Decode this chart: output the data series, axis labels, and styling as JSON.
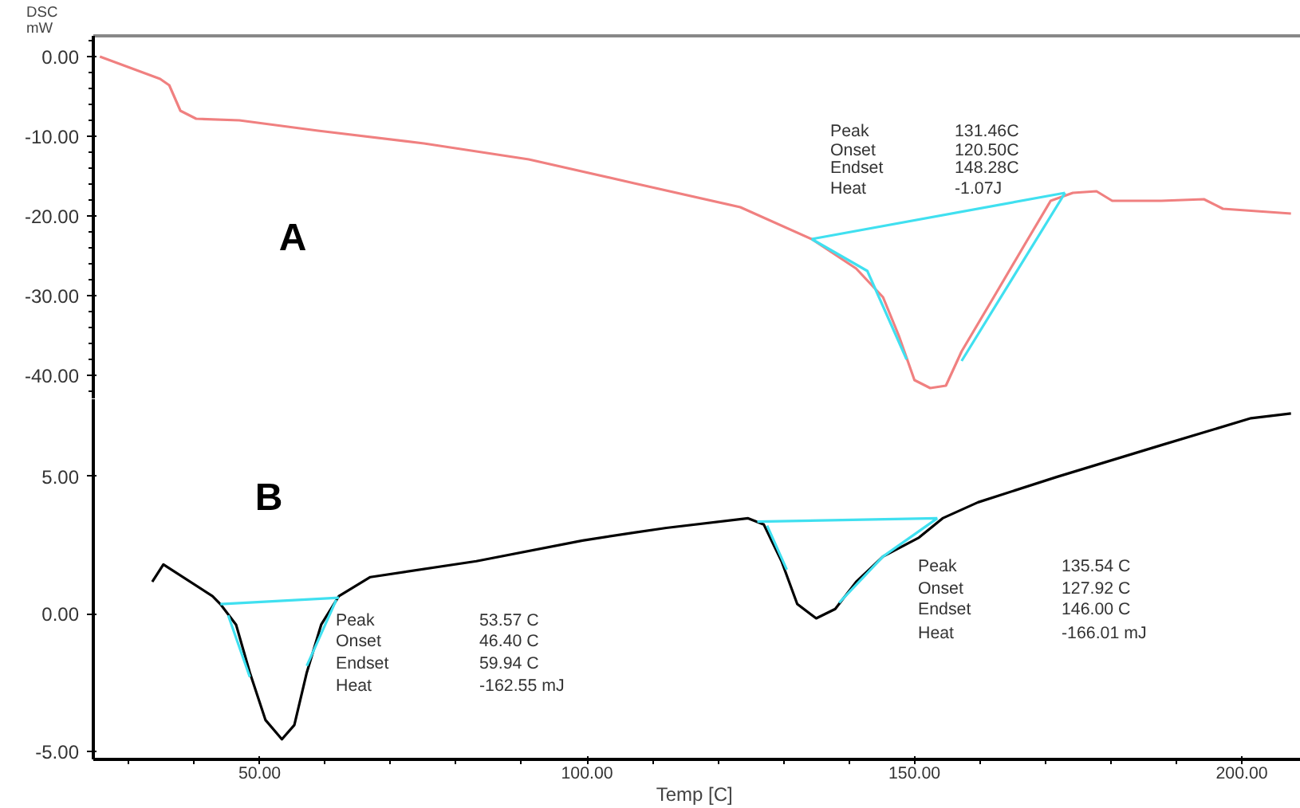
{
  "chart_data": [
    {
      "type": "line",
      "ylabel": "DSC\nmW",
      "xlim": [
        24.6,
        209
      ],
      "ylim": [
        -43,
        2.6
      ],
      "tick_labels": "y",
      "yticks": [
        {
          "value": 0,
          "label": "0.00"
        },
        {
          "value": -10,
          "label": "-10.00"
        },
        {
          "value": -20,
          "label": "-20.00"
        },
        {
          "value": -30,
          "label": "-30.00"
        },
        {
          "value": -40,
          "label": "-40.00"
        }
      ],
      "series": [
        {
          "color": "#f08080",
          "x": [
            25.6,
            34.8,
            36.2,
            37.9,
            40.3,
            46.9,
            58.9,
            75.1,
            91.1,
            107.2,
            123.4,
            134.3,
            141.1,
            145.2,
            147.6,
            150,
            152.4,
            154.8,
            157.2,
            162.1,
            166.9,
            170.8,
            174.2,
            177.8,
            180.2,
            187.7,
            194.2,
            197.1,
            207.5
          ],
          "values": [
            0,
            -2.8,
            -3.6,
            -6.8,
            -7.8,
            -8.0,
            -9.3,
            -10.9,
            -12.9,
            -15.9,
            -18.9,
            -22.9,
            -26.6,
            -30.2,
            -35,
            -40.6,
            -41.6,
            -41.3,
            -37,
            -30.2,
            -23.5,
            -18.1,
            -17.1,
            -16.9,
            -18.1,
            -18.1,
            -17.9,
            -19.1,
            -19.7
          ]
        },
        {
          "color": "#40e0f0",
          "x": [
            134.3,
            173,
            null,
            134.3,
            142.8,
            148.8,
            null,
            157.2,
            173
          ],
          "values": [
            -22.9,
            -17.1,
            null,
            -22.9,
            -26.9,
            -38,
            null,
            -38.2,
            -17.1
          ]
        }
      ],
      "annotations": [
        "A",
        "Peak",
        "Onset",
        "Endset",
        "Heat",
        "131.46C",
        "120.50C",
        "148.28C",
        "-1.07J"
      ]
    },
    {
      "type": "line",
      "xlabel": "Temp  [C]",
      "xlim": [
        24.6,
        209
      ],
      "ylim": [
        -5.3,
        7.8
      ],
      "xticks": [
        {
          "value": 50,
          "label": "50.00"
        },
        {
          "value": 100,
          "label": "100.00"
        },
        {
          "value": 150,
          "label": "150.00"
        },
        {
          "value": 200,
          "label": "200.00"
        }
      ],
      "yticks": [
        {
          "value": 5,
          "label": "5.00"
        },
        {
          "value": 0,
          "label": "0.00"
        },
        {
          "value": -5,
          "label": "-5.00"
        }
      ],
      "series": [
        {
          "color": "#000000",
          "x": [
            33.6,
            35.3,
            42.8,
            44.0,
            46.4,
            48.5,
            50.9,
            53.4,
            55.3,
            57.2,
            59.4,
            62.1,
            66.9,
            83.1,
            99.3,
            107.2,
            112.1,
            124.6,
            127,
            129.7,
            132.1,
            135,
            137.9,
            141.1,
            145.2,
            150.7,
            154.3,
            159.7,
            171.7,
            187.7,
            201.4,
            207.5
          ],
          "values": [
            1.16,
            1.79,
            0.64,
            0.35,
            -0.4,
            -2.14,
            -3.87,
            -4.57,
            -4.05,
            -2.14,
            -0.4,
            0.64,
            1.33,
            1.91,
            2.66,
            2.95,
            3.12,
            3.47,
            3.24,
            1.91,
            0.35,
            -0.17,
            0.17,
            1.16,
            2.08,
            2.77,
            3.47,
            4.05,
            4.97,
            6.13,
            7.11,
            7.28
          ]
        },
        {
          "color": "#40e0f0",
          "x": [
            44,
            62.1,
            null,
            45.2,
            48.5,
            null,
            57.2,
            61.7,
            null,
            126,
            153.5,
            null,
            127.5,
            130.5,
            null,
            138.5,
            145.2,
            153.5
          ],
          "values": [
            0.35,
            0.58,
            null,
            -0.06,
            -2.3,
            null,
            -1.9,
            0.5,
            null,
            3.35,
            3.47,
            null,
            3.2,
            1.6,
            null,
            0.4,
            2.08,
            3.47
          ]
        }
      ],
      "annotations": [
        "B",
        "Peak",
        "Onset",
        "Endset",
        "Heat",
        "53.57 C",
        "46.40 C",
        "59.94 C",
        "-162.55 mJ",
        "Peak",
        "Onset",
        "Endset",
        "Heat",
        "135.54 C",
        "127.92 C",
        "146.00 C",
        "-166.01 mJ"
      ]
    }
  ]
}
